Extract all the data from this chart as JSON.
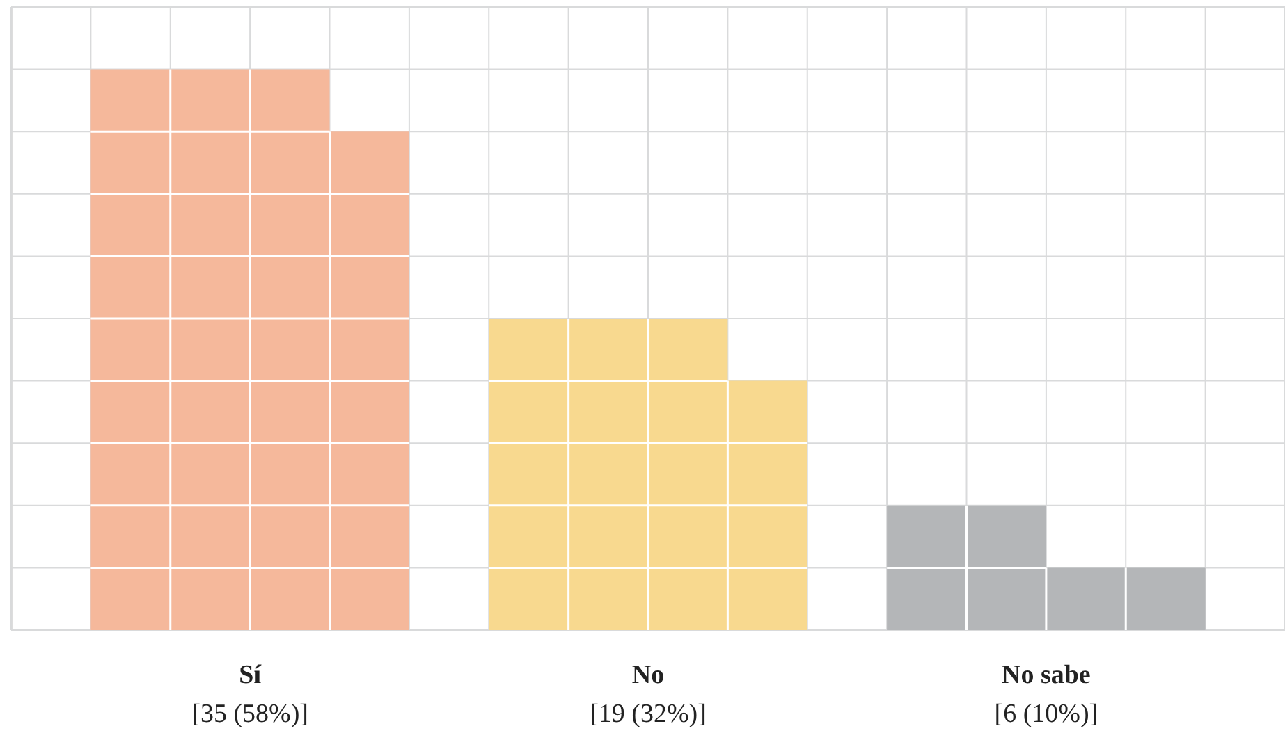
{
  "chart_data": {
    "type": "other",
    "categories": [
      "Sí",
      "No",
      "No sabe"
    ],
    "values": [
      35,
      19,
      6
    ],
    "value_labels": [
      "[35 (58%)]",
      "[19 (32%)]",
      "[6 (10%)]"
    ],
    "colors": [
      "#f5b89b",
      "#f8d98f",
      "#b4b6b8"
    ]
  }
}
